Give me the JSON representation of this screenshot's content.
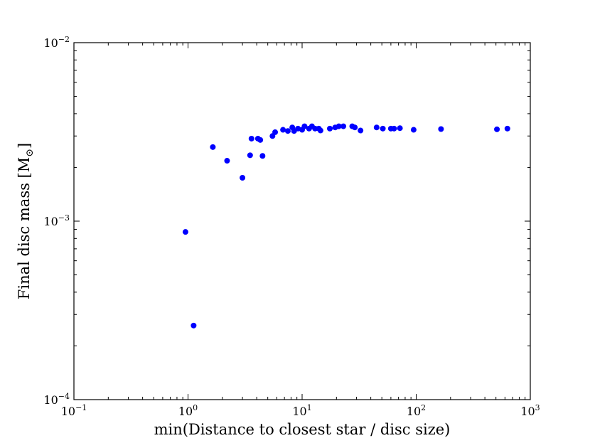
{
  "chart_data": {
    "type": "scatter",
    "xscale": "log",
    "yscale": "log",
    "xlim": [
      0.1,
      1000
    ],
    "ylim": [
      0.0001,
      0.01
    ],
    "xlabel": "min(Distance to closest star / disc size)",
    "ylabel": "Final disc mass [M",
    "ylabel_subscript": "⊙",
    "ylabel_suffix": "]",
    "grid": false,
    "x_ticks": [
      {
        "value": 0.1,
        "base": "10",
        "exp": "−1"
      },
      {
        "value": 1,
        "base": "10",
        "exp": "0"
      },
      {
        "value": 10,
        "base": "10",
        "exp": "1"
      },
      {
        "value": 100,
        "base": "10",
        "exp": "2"
      },
      {
        "value": 1000,
        "base": "10",
        "exp": "3"
      }
    ],
    "y_ticks": [
      {
        "value": 0.0001,
        "base": "10",
        "exp": "−4"
      },
      {
        "value": 0.001,
        "base": "10",
        "exp": "−3"
      },
      {
        "value": 0.01,
        "base": "10",
        "exp": "−2"
      }
    ],
    "marker_color": "#0000ff",
    "points": [
      {
        "x": 0.95,
        "y": 0.00087
      },
      {
        "x": 1.12,
        "y": 0.00026
      },
      {
        "x": 1.65,
        "y": 0.0026
      },
      {
        "x": 2.2,
        "y": 0.00218
      },
      {
        "x": 3.0,
        "y": 0.00175
      },
      {
        "x": 3.5,
        "y": 0.00234
      },
      {
        "x": 3.6,
        "y": 0.0029
      },
      {
        "x": 4.1,
        "y": 0.0029
      },
      {
        "x": 4.3,
        "y": 0.00285
      },
      {
        "x": 4.5,
        "y": 0.00232
      },
      {
        "x": 5.5,
        "y": 0.003
      },
      {
        "x": 5.8,
        "y": 0.00315
      },
      {
        "x": 6.8,
        "y": 0.00325
      },
      {
        "x": 7.5,
        "y": 0.0032
      },
      {
        "x": 8.2,
        "y": 0.00335
      },
      {
        "x": 8.5,
        "y": 0.0032
      },
      {
        "x": 9.2,
        "y": 0.0033
      },
      {
        "x": 10.0,
        "y": 0.00325
      },
      {
        "x": 10.5,
        "y": 0.0034
      },
      {
        "x": 11.5,
        "y": 0.0033
      },
      {
        "x": 12.2,
        "y": 0.0034
      },
      {
        "x": 13.0,
        "y": 0.0033
      },
      {
        "x": 14.0,
        "y": 0.0033
      },
      {
        "x": 14.5,
        "y": 0.00322
      },
      {
        "x": 17.5,
        "y": 0.0033
      },
      {
        "x": 19.5,
        "y": 0.00335
      },
      {
        "x": 21.0,
        "y": 0.0034
      },
      {
        "x": 23.0,
        "y": 0.0034
      },
      {
        "x": 27.5,
        "y": 0.0034
      },
      {
        "x": 29.0,
        "y": 0.00335
      },
      {
        "x": 32.5,
        "y": 0.00322
      },
      {
        "x": 45.0,
        "y": 0.00335
      },
      {
        "x": 51.0,
        "y": 0.0033
      },
      {
        "x": 60.0,
        "y": 0.0033
      },
      {
        "x": 64.0,
        "y": 0.0033
      },
      {
        "x": 72.0,
        "y": 0.00332
      },
      {
        "x": 95.0,
        "y": 0.00325
      },
      {
        "x": 165.0,
        "y": 0.00328
      },
      {
        "x": 510.0,
        "y": 0.00327
      },
      {
        "x": 630.0,
        "y": 0.0033
      }
    ]
  }
}
